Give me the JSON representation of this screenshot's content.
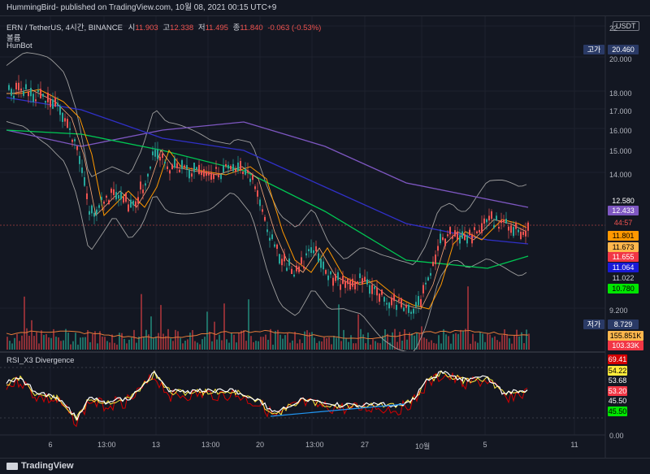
{
  "header": {
    "published": "HummingBird- published on TradingView.com, 10월 08, 2021 00:15 UTC+9"
  },
  "legend": {
    "symbol": "ERN / TetherUS, 4시간, BINANCE",
    "o_label": "시",
    "o_val": "11.903",
    "h_label": "고",
    "h_val": "12.338",
    "l_label": "저",
    "l_val": "11.495",
    "c_label": "종",
    "c_val": "11.840",
    "change": "-0.063 (-0.53%)",
    "volume": "볼륨",
    "bot": "HunBot"
  },
  "indicator": {
    "title": "RSI_X3 Divergence"
  },
  "currency": "USDT",
  "y_axis_ticks": [
    "22",
    "20.000",
    "18.000",
    "17.000",
    "16.000",
    "15.000",
    "14.000",
    "9.200"
  ],
  "x_axis_ticks": [
    "6",
    "13:00",
    "13",
    "13:00",
    "20",
    "13:00",
    "27",
    "10월",
    "5",
    "11"
  ],
  "price_tags": [
    {
      "text": "12.580",
      "color": "#ffffff",
      "bg": "#131722"
    },
    {
      "text": "12.433",
      "color": "#ffffff",
      "bg": "#7e57c2"
    },
    {
      "text": "44:57",
      "color": "#ef5350",
      "bg": "#131722"
    },
    {
      "text": "11.801",
      "color": "#000000",
      "bg": "#ff9800"
    },
    {
      "text": "11.673",
      "color": "#000000",
      "bg": "#ffb74d"
    },
    {
      "text": "11.655",
      "color": "#ffffff",
      "bg": "#f23645"
    },
    {
      "text": "11.064",
      "color": "#ffffff",
      "bg": "#1a1ad6"
    },
    {
      "text": "11.022",
      "color": "#d1d4dc",
      "bg": "#131722"
    },
    {
      "text": "10.780",
      "color": "#000000",
      "bg": "#00e600"
    }
  ],
  "high_marker": {
    "label": "고가",
    "value": "20.460"
  },
  "low_marker": {
    "label": "저가",
    "value": "8.729"
  },
  "volume_tags": [
    {
      "text": "155.851K",
      "color": "#000000",
      "bg": "#ffb74d"
    },
    {
      "text": "103.33K",
      "color": "#ffffff",
      "bg": "#f23645"
    }
  ],
  "rsi_tags": [
    {
      "text": "69.41",
      "color": "#ffffff",
      "bg": "#d50000"
    },
    {
      "text": "54.22",
      "color": "#000000",
      "bg": "#ffeb3b"
    },
    {
      "text": "53.68",
      "color": "#ffffff",
      "bg": "#131722"
    },
    {
      "text": "53.20",
      "color": "#ffffff",
      "bg": "#f23645"
    },
    {
      "text": "45.50",
      "color": "#ffffff",
      "bg": "#131722"
    },
    {
      "text": "45.50",
      "color": "#000000",
      "bg": "#00e600"
    }
  ],
  "rsi_zero": "0.00",
  "footer": {
    "brand": "TradingView"
  },
  "colors": {
    "candle_up": "#26a69a",
    "candle_down": "#ef5350",
    "bb": "#9e9e9e",
    "ma_blue": "#3030c8",
    "ma_purple": "#7e57c2",
    "ma_green": "#00c853",
    "ma_orange": "#ff9800",
    "rsi_white": "#ffffff",
    "rsi_red": "#d50000",
    "rsi_yellow": "#ffeb3b",
    "divergence": "#2196f3"
  }
}
